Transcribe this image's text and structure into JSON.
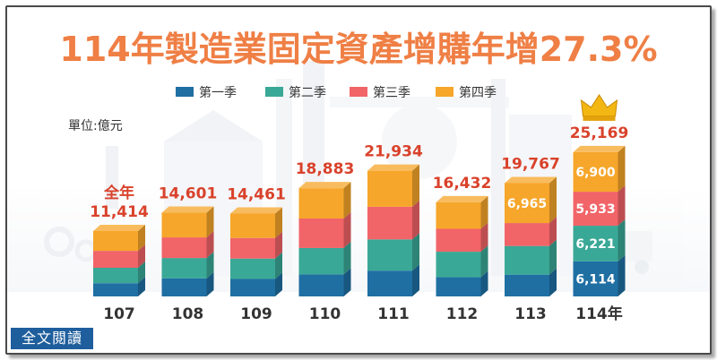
{
  "colors": {
    "title": "#ef7f45",
    "label": "#d9422b",
    "q1": "#1f6fa3",
    "q2": "#3aa896",
    "q3": "#f16468",
    "q4": "#f6a62a",
    "axis_text": "#333333",
    "link_bg": "#1f5e9c"
  },
  "link": {
    "full_text": "全文閱讀"
  },
  "chart_data": {
    "type": "bar",
    "stacked": true,
    "title": "114年製造業固定資產增購年增27.3%",
    "unit_label": "單位:億元",
    "legend_position": "top",
    "categories": [
      "107",
      "108",
      "109",
      "110",
      "111",
      "112",
      "113",
      "114年"
    ],
    "totals": [
      11414,
      14601,
      14461,
      18883,
      21934,
      16432,
      19767,
      25169
    ],
    "total_labels": [
      "11,414",
      "14,601",
      "14,461",
      "18,883",
      "21,934",
      "16,432",
      "19,767",
      "25,169"
    ],
    "first_total_prefix": "全年",
    "crown_on": "114年",
    "series": [
      {
        "name": "第一季",
        "color_key": "q1",
        "values": [
          2300,
          3150,
          3050,
          3850,
          4500,
          3350,
          3800,
          6114
        ],
        "labels": [
          "",
          "",
          "",
          "",
          "",
          "",
          "",
          "6,114"
        ]
      },
      {
        "name": "第二季",
        "color_key": "q2",
        "values": [
          2700,
          3550,
          3550,
          4600,
          5450,
          4450,
          5000,
          6221
        ],
        "labels": [
          "",
          "",
          "",
          "",
          "",
          "",
          "",
          "6,221"
        ]
      },
      {
        "name": "第三季",
        "color_key": "q3",
        "values": [
          2950,
          3600,
          3600,
          5150,
          5700,
          4000,
          4002,
          5933
        ],
        "labels": [
          "",
          "",
          "",
          "",
          "",
          "",
          "",
          "5,933"
        ]
      },
      {
        "name": "第四季",
        "color_key": "q4",
        "values": [
          3464,
          4301,
          4261,
          5283,
          6284,
          4632,
          6965,
          6900
        ],
        "labels": [
          "",
          "",
          "",
          "",
          "",
          "",
          "6,965",
          "6,900"
        ]
      }
    ]
  }
}
